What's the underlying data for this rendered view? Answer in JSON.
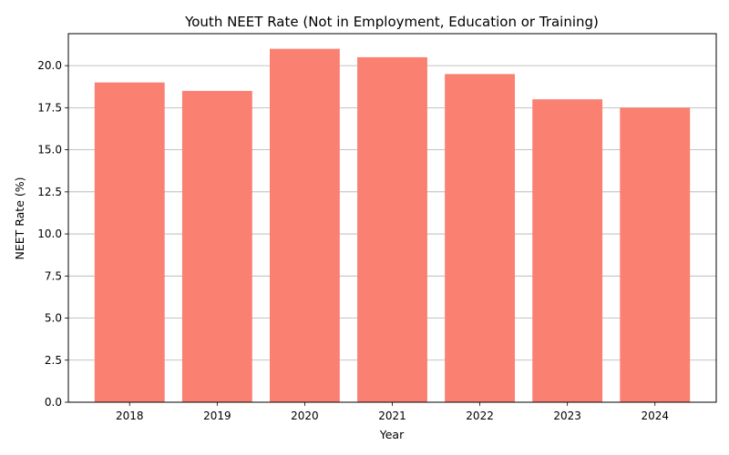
{
  "chart_data": {
    "type": "bar",
    "title": "Youth NEET Rate (Not in Employment, Education or Training)",
    "xlabel": "Year",
    "ylabel": "NEET Rate (%)",
    "categories": [
      "2018",
      "2019",
      "2020",
      "2021",
      "2022",
      "2023",
      "2024"
    ],
    "values": [
      19.0,
      18.5,
      21.0,
      20.5,
      19.5,
      18.0,
      17.5
    ],
    "ylim": [
      0,
      21.9
    ],
    "yticks": [
      "0.0",
      "2.5",
      "5.0",
      "7.5",
      "10.0",
      "12.5",
      "15.0",
      "17.5",
      "20.0"
    ],
    "grid": "horizontal",
    "bar_color": "#fa8072"
  }
}
